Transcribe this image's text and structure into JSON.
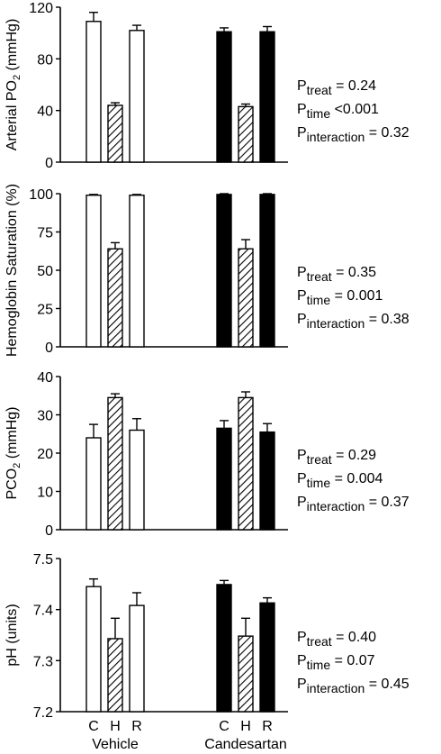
{
  "chart_data": [
    {
      "type": "bar",
      "panel": "arterial-po2",
      "ylabel_main": "Arterial PO",
      "ylabel_sub": "2",
      "ylabel_tail": " (mmHg)",
      "ylim": [
        0,
        120
      ],
      "yticks": [
        "0",
        "40",
        "80",
        "120"
      ],
      "categories": [
        "C",
        "H",
        "R"
      ],
      "series": [
        {
          "name": "Vehicle",
          "fill": "white",
          "values": [
            109,
            44,
            102
          ],
          "errors": [
            7,
            2,
            4
          ]
        },
        {
          "name": "Candesartan",
          "fill": "black",
          "values": [
            101,
            43,
            101
          ],
          "errors": [
            3,
            2,
            4
          ]
        }
      ],
      "stats": [
        {
          "p": "P",
          "sub": "treat",
          "text": " = 0.24"
        },
        {
          "p": "P",
          "sub": "time",
          "text": " <0.001"
        },
        {
          "p": "P",
          "sub": "interaction",
          "text": " = 0.32"
        }
      ]
    },
    {
      "type": "bar",
      "panel": "hemoglobin-saturation",
      "ylabel_main": "Hemoglobin Saturation (%)",
      "ylabel_sub": "",
      "ylabel_tail": "",
      "ylim": [
        0,
        100
      ],
      "yticks": [
        "0",
        "25",
        "50",
        "75",
        "100"
      ],
      "categories": [
        "C",
        "H",
        "R"
      ],
      "series": [
        {
          "name": "Vehicle",
          "fill": "white",
          "values": [
            99,
            64,
            99
          ],
          "errors": [
            0.5,
            4,
            0.5
          ]
        },
        {
          "name": "Candesartan",
          "fill": "black",
          "values": [
            99.5,
            64,
            99.5
          ],
          "errors": [
            0.5,
            6,
            0.5
          ]
        }
      ],
      "stats": [
        {
          "p": "P",
          "sub": "treat",
          "text": " = 0.35"
        },
        {
          "p": "P",
          "sub": "time",
          "text": " = 0.001"
        },
        {
          "p": "P",
          "sub": "interaction",
          "text": " = 0.38"
        }
      ]
    },
    {
      "type": "bar",
      "panel": "pco2",
      "ylabel_main": "PCO",
      "ylabel_sub": "2",
      "ylabel_tail": " (mmHg)",
      "ylim": [
        0,
        40
      ],
      "yticks": [
        "0",
        "10",
        "20",
        "30",
        "40"
      ],
      "categories": [
        "C",
        "H",
        "R"
      ],
      "series": [
        {
          "name": "Vehicle",
          "fill": "white",
          "values": [
            24,
            34.5,
            26
          ],
          "errors": [
            3.5,
            1,
            3
          ]
        },
        {
          "name": "Candesartan",
          "fill": "black",
          "values": [
            26.5,
            34.5,
            25.5
          ],
          "errors": [
            2,
            1.5,
            2.2
          ]
        }
      ],
      "stats": [
        {
          "p": "P",
          "sub": "treat",
          "text": " = 0.29"
        },
        {
          "p": "P",
          "sub": "time",
          "text": " = 0.004"
        },
        {
          "p": "P",
          "sub": "interaction",
          "text": " = 0.37"
        }
      ]
    },
    {
      "type": "bar",
      "panel": "ph",
      "ylabel_main": "pH (units)",
      "ylabel_sub": "",
      "ylabel_tail": "",
      "ylim": [
        7.2,
        7.5
      ],
      "yticks": [
        "7.2",
        "7.3",
        "7.4",
        "7.5"
      ],
      "categories": [
        "C",
        "H",
        "R"
      ],
      "series": [
        {
          "name": "Vehicle",
          "fill": "white",
          "values": [
            7.445,
            7.343,
            7.408
          ],
          "errors": [
            0.015,
            0.04,
            0.025
          ]
        },
        {
          "name": "Candesartan",
          "fill": "black",
          "values": [
            7.449,
            7.348,
            7.413
          ],
          "errors": [
            0.008,
            0.035,
            0.01
          ]
        }
      ],
      "stats": [
        {
          "p": "P",
          "sub": "treat",
          "text": " = 0.40"
        },
        {
          "p": "P",
          "sub": "time",
          "text": " = 0.07"
        },
        {
          "p": "P",
          "sub": "interaction",
          "text": " = 0.45"
        }
      ]
    }
  ],
  "x_axis": {
    "categories": [
      "C",
      "H",
      "R"
    ],
    "groups": [
      "Vehicle",
      "Candesartan"
    ]
  },
  "legend": "none",
  "grid": false,
  "hatch_category": "H"
}
